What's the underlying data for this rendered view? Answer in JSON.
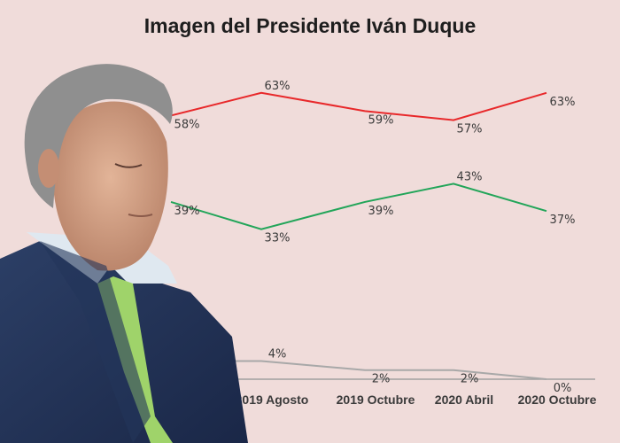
{
  "chart_data": {
    "type": "line",
    "title": "Imagen del Presidente Iván Duque",
    "categories": [
      "",
      "2019 Agosto",
      "2019 Octubre",
      "2020 Abril",
      "2020 Octubre"
    ],
    "ylim": [
      0,
      70
    ],
    "grid": false,
    "series": [
      {
        "color": "#e8282a",
        "values": [
          58,
          63,
          59,
          57,
          63
        ]
      },
      {
        "color": "#22a559",
        "values": [
          39,
          33,
          39,
          43,
          37
        ]
      },
      {
        "color": "#a8a8a8",
        "values": [
          4,
          4,
          2,
          2,
          0
        ]
      }
    ]
  },
  "photo": {
    "subject": "person-photo-overlay"
  }
}
